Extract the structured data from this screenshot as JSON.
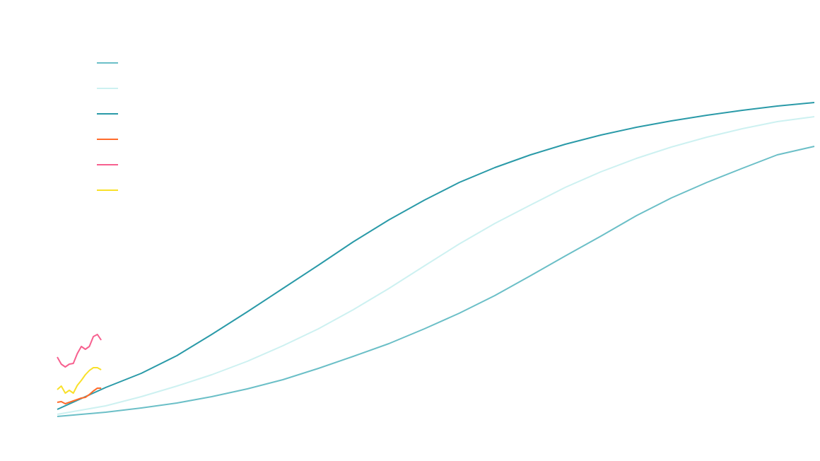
{
  "chart_data": {
    "type": "line",
    "title": "",
    "xlabel": "",
    "ylabel": "",
    "xlim": [
      0,
      100
    ],
    "ylim": [
      0,
      100
    ],
    "grid": false,
    "axes_visible": false,
    "legend": "top-left",
    "series": [
      {
        "color": "#6bbfc7",
        "x": [
          0,
          6.4,
          11.1,
          15.8,
          20.4,
          25.1,
          29.8,
          34.5,
          39.1,
          43.8,
          48.5,
          53.1,
          57.8,
          62.5,
          67.1,
          71.8,
          76.5,
          81.1,
          85.8,
          90.5,
          95.1,
          100
        ],
        "y": [
          2.2,
          3.4,
          4.6,
          6,
          7.8,
          10,
          12.6,
          15.8,
          19.2,
          22.8,
          27,
          31.4,
          36.4,
          42,
          47.6,
          53.2,
          59,
          64,
          68.4,
          72.4,
          76.2,
          78.6
        ]
      },
      {
        "color": "#cdf1f1",
        "x": [
          0,
          6.4,
          11.1,
          15.8,
          20.4,
          25.1,
          29.8,
          34.5,
          39.1,
          43.8,
          48.5,
          53.1,
          57.8,
          62.5,
          67.1,
          71.8,
          76.5,
          81.1,
          85.8,
          90.5,
          95.1,
          100
        ],
        "y": [
          2.8,
          5.2,
          7.8,
          10.8,
          14,
          17.8,
          22.2,
          27,
          32.4,
          38.4,
          44.8,
          51,
          56.8,
          62,
          67,
          71.4,
          75.2,
          78.4,
          81.2,
          83.6,
          85.6,
          87
        ]
      },
      {
        "color": "#2a9aa8",
        "x": [
          0,
          6.4,
          11.1,
          15.8,
          20.4,
          25.1,
          29.8,
          34.5,
          39.1,
          43.8,
          48.5,
          53.1,
          57.8,
          62.5,
          67.1,
          71.8,
          76.5,
          81.1,
          85.8,
          90.5,
          95.1,
          100
        ],
        "y": [
          4.2,
          10.4,
          14.4,
          19.4,
          25.4,
          31.8,
          38.4,
          45,
          51.6,
          57.8,
          63.4,
          68.4,
          72.6,
          76.2,
          79.2,
          81.8,
          84,
          85.8,
          87.4,
          88.8,
          90,
          91
        ]
      },
      {
        "color": "#ff6b2b",
        "x": [
          0,
          0.53,
          1.06,
          1.59,
          2.12,
          2.65,
          3.18,
          3.71,
          4.24,
          4.77,
          5.3,
          5.8
        ],
        "y": [
          6.2,
          6.4,
          5.8,
          6.2,
          6.6,
          7,
          7.4,
          7.6,
          8.4,
          9.4,
          10.2,
          10.2
        ]
      },
      {
        "color": "#f7608f",
        "x": [
          0,
          0.53,
          1.06,
          1.59,
          2.12,
          2.65,
          3.18,
          3.71,
          4.24,
          4.77,
          5.3,
          5.8
        ],
        "y": [
          19,
          17,
          16.2,
          17,
          17.2,
          20,
          22,
          21.2,
          22,
          24.8,
          25.4,
          23.8
        ]
      },
      {
        "color": "#f9e02a",
        "x": [
          0,
          0.53,
          1.06,
          1.59,
          2.12,
          2.65,
          3.18,
          3.71,
          4.24,
          4.77,
          5.3,
          5.8
        ],
        "y": [
          9.8,
          10.8,
          8.8,
          9.6,
          8.8,
          11,
          12.4,
          14,
          15.2,
          16,
          16,
          15.4
        ]
      }
    ]
  }
}
